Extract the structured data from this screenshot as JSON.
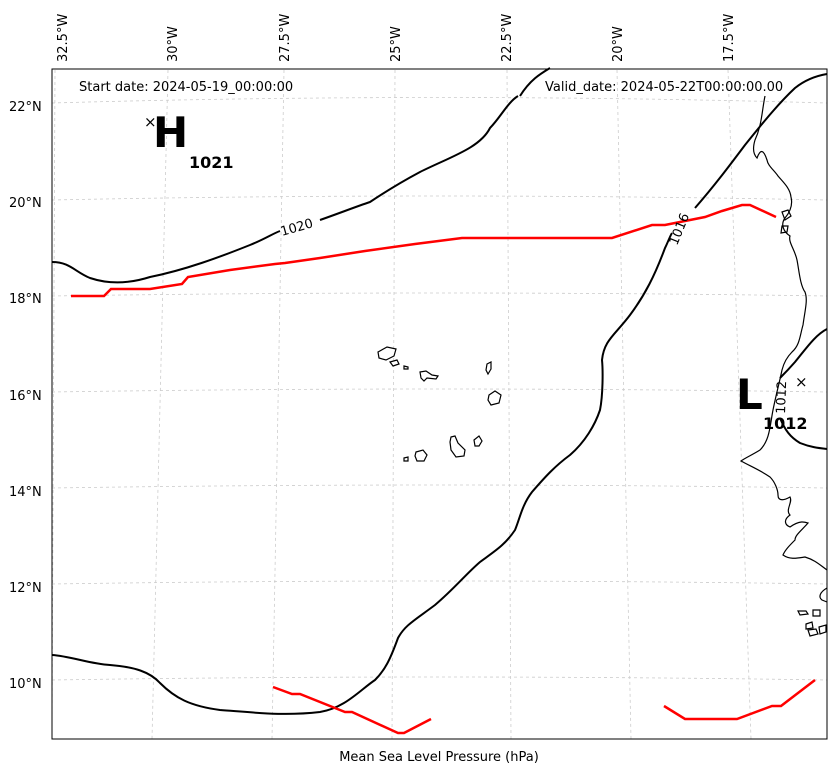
{
  "header": {
    "start_date": "Start date: 2024-05-19_00:00:00",
    "valid_date": "Valid_date: 2024-05-22T00:00:00.00"
  },
  "footer": {
    "xlabel": "Mean Sea Level Pressure (hPa)"
  },
  "lon_labels": [
    "32.5°W",
    "30°W",
    "27.5°W",
    "25°W",
    "22.5°W",
    "20°W",
    "17.5°W"
  ],
  "lat_labels": [
    "22°N",
    "20°N",
    "18°N",
    "16°N",
    "14°N",
    "12°N",
    "10°N"
  ],
  "contour_labels": [
    "1020",
    "1016",
    "1012"
  ],
  "pressure_centers": [
    {
      "letter": "H",
      "value": "1021"
    },
    {
      "letter": "L",
      "value": "1012"
    }
  ],
  "colors": {
    "isobar": "#000000",
    "highlight": "#ff0000",
    "grid": "#cccccc",
    "coast": "#000000"
  }
}
